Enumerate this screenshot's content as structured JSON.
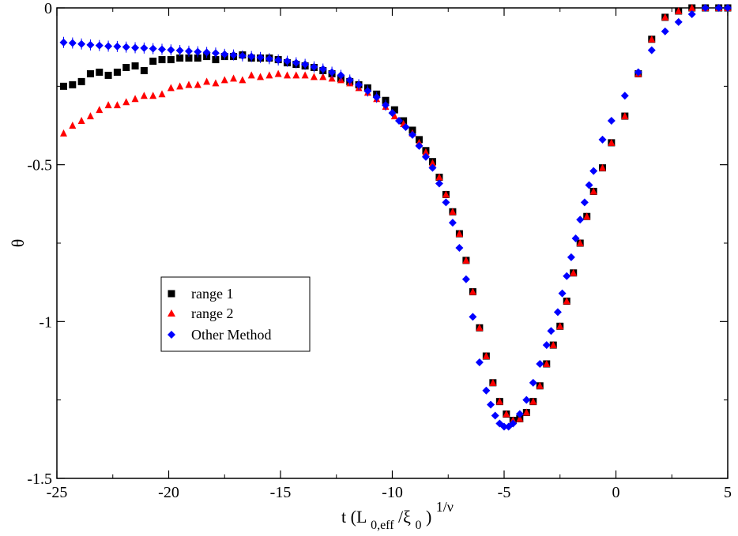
{
  "chart_data": {
    "type": "scatter",
    "title": "",
    "xlabel": "t (L",
    "xlabel_sub1": "0,eff",
    "xlabel_slash": "/ξ",
    "xlabel_sub2": "0",
    "xlabel_close": ")",
    "xlabel_sup": "1/ν",
    "ylabel": "θ",
    "xlim": [
      -25,
      5
    ],
    "ylim": [
      -1.5,
      0
    ],
    "xticks": [
      -25,
      -20,
      -15,
      -10,
      -5,
      0,
      5
    ],
    "xtick_labels": [
      "-25",
      "-20",
      "-15",
      "-10",
      "-5",
      "0",
      "5"
    ],
    "yticks": [
      0,
      -0.5,
      -1,
      -1.5
    ],
    "ytick_labels": [
      "0",
      "-0.5",
      "-1",
      "-1.5"
    ],
    "grid": false,
    "legend_position": "center-left",
    "series": [
      {
        "name": "range 1",
        "marker": "square",
        "color": "#000000",
        "x": [
          -24.7,
          -24.3,
          -23.9,
          -23.5,
          -23.1,
          -22.7,
          -22.3,
          -21.9,
          -21.5,
          -21.1,
          -20.7,
          -20.3,
          -19.9,
          -19.5,
          -19.1,
          -18.7,
          -18.3,
          -17.9,
          -17.5,
          -17.1,
          -16.7,
          -16.3,
          -15.9,
          -15.5,
          -15.1,
          -14.7,
          -14.3,
          -13.9,
          -13.5,
          -13.1,
          -12.7,
          -12.3,
          -11.9,
          -11.5,
          -11.1,
          -10.7,
          -10.3,
          -9.9,
          -9.5,
          -9.1,
          -8.8,
          -8.5,
          -8.2,
          -7.9,
          -7.6,
          -7.3,
          -7.0,
          -6.7,
          -6.4,
          -6.1,
          -5.8,
          -5.5,
          -5.2,
          -4.9,
          -4.6,
          -4.3,
          -4.0,
          -3.7,
          -3.4,
          -3.1,
          -2.8,
          -2.5,
          -2.2,
          -1.9,
          -1.6,
          -1.3,
          -1.0,
          -0.6,
          -0.2,
          0.4,
          1.0,
          1.6,
          2.2,
          2.8,
          3.4,
          4.0,
          4.6,
          5.0
        ],
        "y": [
          -0.25,
          -0.245,
          -0.235,
          -0.21,
          -0.205,
          -0.215,
          -0.205,
          -0.19,
          -0.185,
          -0.2,
          -0.17,
          -0.165,
          -0.165,
          -0.16,
          -0.16,
          -0.16,
          -0.155,
          -0.165,
          -0.155,
          -0.155,
          -0.15,
          -0.16,
          -0.16,
          -0.16,
          -0.165,
          -0.175,
          -0.18,
          -0.185,
          -0.19,
          -0.2,
          -0.21,
          -0.225,
          -0.235,
          -0.245,
          -0.255,
          -0.275,
          -0.295,
          -0.325,
          -0.36,
          -0.39,
          -0.42,
          -0.455,
          -0.49,
          -0.54,
          -0.595,
          -0.65,
          -0.72,
          -0.805,
          -0.905,
          -1.02,
          -1.11,
          -1.195,
          -1.255,
          -1.295,
          -1.315,
          -1.31,
          -1.29,
          -1.255,
          -1.205,
          -1.135,
          -1.075,
          -1.015,
          -0.935,
          -0.845,
          -0.75,
          -0.665,
          -0.585,
          -0.51,
          -0.43,
          -0.345,
          -0.21,
          -0.1,
          -0.03,
          -0.01,
          0.0,
          0.0,
          0.0,
          0.0
        ]
      },
      {
        "name": "range 2",
        "marker": "triangle",
        "color": "#ff0000",
        "x": [
          -24.7,
          -24.3,
          -23.9,
          -23.5,
          -23.1,
          -22.7,
          -22.3,
          -21.9,
          -21.5,
          -21.1,
          -20.7,
          -20.3,
          -19.9,
          -19.5,
          -19.1,
          -18.7,
          -18.3,
          -17.9,
          -17.5,
          -17.1,
          -16.7,
          -16.3,
          -15.9,
          -15.5,
          -15.1,
          -14.7,
          -14.3,
          -13.9,
          -13.5,
          -13.1,
          -12.7,
          -12.3,
          -11.9,
          -11.5,
          -11.1,
          -10.7,
          -10.3,
          -9.9,
          -9.5,
          -9.1,
          -8.8,
          -8.5,
          -8.2,
          -7.9,
          -7.6,
          -7.3,
          -7.0,
          -6.7,
          -6.4,
          -6.1,
          -5.8,
          -5.5,
          -5.2,
          -4.9,
          -4.6,
          -4.3,
          -4.0,
          -3.7,
          -3.4,
          -3.1,
          -2.8,
          -2.5,
          -2.2,
          -1.9,
          -1.6,
          -1.3,
          -1.0,
          -0.6,
          -0.2,
          0.4,
          1.0,
          1.6,
          2.2,
          2.8,
          3.4,
          4.0,
          4.6,
          5.0
        ],
        "y": [
          -0.4,
          -0.375,
          -0.36,
          -0.345,
          -0.325,
          -0.31,
          -0.31,
          -0.3,
          -0.29,
          -0.28,
          -0.28,
          -0.275,
          -0.255,
          -0.25,
          -0.245,
          -0.245,
          -0.235,
          -0.24,
          -0.23,
          -0.225,
          -0.23,
          -0.215,
          -0.22,
          -0.215,
          -0.21,
          -0.215,
          -0.215,
          -0.215,
          -0.22,
          -0.22,
          -0.225,
          -0.23,
          -0.24,
          -0.255,
          -0.27,
          -0.29,
          -0.315,
          -0.345,
          -0.37,
          -0.4,
          -0.43,
          -0.46,
          -0.495,
          -0.54,
          -0.595,
          -0.65,
          -0.72,
          -0.805,
          -0.905,
          -1.02,
          -1.11,
          -1.195,
          -1.255,
          -1.295,
          -1.315,
          -1.31,
          -1.29,
          -1.255,
          -1.205,
          -1.135,
          -1.075,
          -1.015,
          -0.935,
          -0.845,
          -0.75,
          -0.665,
          -0.585,
          -0.51,
          -0.43,
          -0.345,
          -0.21,
          -0.1,
          -0.03,
          -0.01,
          0.0,
          0.0,
          0.0,
          0.0
        ]
      },
      {
        "name": "Other Method",
        "marker": "diamond",
        "color": "#0000ff",
        "x": [
          -24.7,
          -24.3,
          -23.9,
          -23.5,
          -23.1,
          -22.7,
          -22.3,
          -21.9,
          -21.5,
          -21.1,
          -20.7,
          -20.3,
          -19.9,
          -19.5,
          -19.1,
          -18.7,
          -18.3,
          -17.9,
          -17.5,
          -17.1,
          -16.7,
          -16.3,
          -15.9,
          -15.5,
          -15.1,
          -14.7,
          -14.3,
          -13.9,
          -13.5,
          -13.1,
          -12.7,
          -12.3,
          -11.9,
          -11.5,
          -11.1,
          -10.7,
          -10.3,
          -10.0,
          -9.7,
          -9.4,
          -9.1,
          -8.8,
          -8.5,
          -8.2,
          -7.9,
          -7.6,
          -7.3,
          -7.0,
          -6.7,
          -6.4,
          -6.1,
          -5.8,
          -5.6,
          -5.4,
          -5.2,
          -5.0,
          -4.8,
          -4.6,
          -4.3,
          -4.0,
          -3.7,
          -3.4,
          -3.1,
          -2.9,
          -2.6,
          -2.4,
          -2.2,
          -2.0,
          -1.8,
          -1.6,
          -1.4,
          -1.2,
          -1.0,
          -0.6,
          -0.2,
          0.4,
          1.0,
          1.6,
          2.2,
          2.8,
          3.4,
          4.0,
          4.6,
          5.0
        ],
        "y": [
          -0.11,
          -0.112,
          -0.115,
          -0.118,
          -0.12,
          -0.122,
          -0.123,
          -0.125,
          -0.127,
          -0.128,
          -0.13,
          -0.132,
          -0.134,
          -0.136,
          -0.138,
          -0.14,
          -0.142,
          -0.144,
          -0.148,
          -0.15,
          -0.153,
          -0.155,
          -0.158,
          -0.162,
          -0.166,
          -0.17,
          -0.175,
          -0.18,
          -0.188,
          -0.195,
          -0.205,
          -0.215,
          -0.23,
          -0.245,
          -0.265,
          -0.285,
          -0.31,
          -0.335,
          -0.36,
          -0.38,
          -0.405,
          -0.44,
          -0.475,
          -0.51,
          -0.56,
          -0.62,
          -0.685,
          -0.765,
          -0.865,
          -0.985,
          -1.13,
          -1.22,
          -1.265,
          -1.3,
          -1.325,
          -1.335,
          -1.335,
          -1.325,
          -1.295,
          -1.25,
          -1.195,
          -1.135,
          -1.075,
          -1.03,
          -0.97,
          -0.91,
          -0.855,
          -0.795,
          -0.735,
          -0.675,
          -0.62,
          -0.565,
          -0.52,
          -0.42,
          -0.36,
          -0.28,
          -0.205,
          -0.135,
          -0.075,
          -0.045,
          -0.02,
          0.0,
          0.0,
          0.0
        ]
      }
    ]
  }
}
